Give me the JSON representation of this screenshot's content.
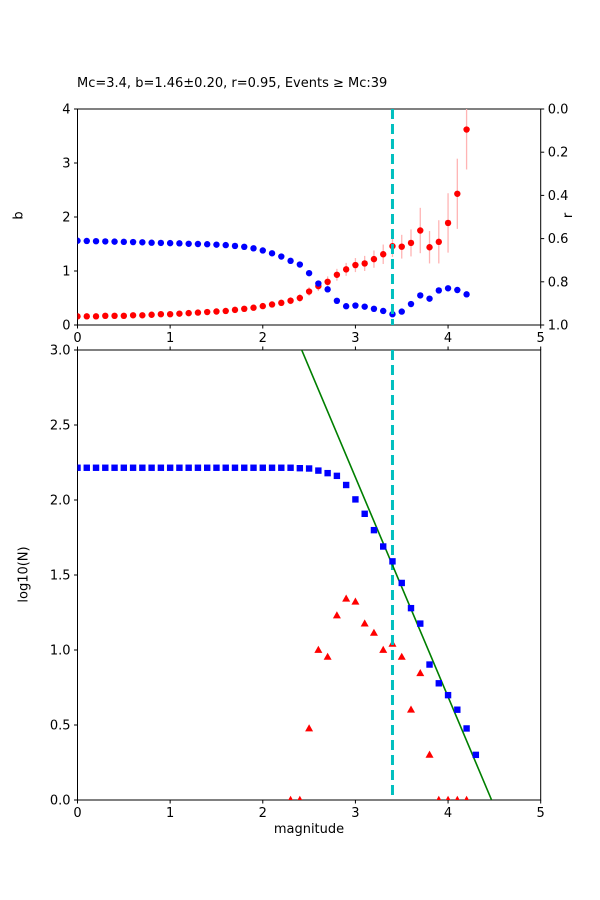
{
  "figure": {
    "title": "Mc=3.4, b=1.46±0.20, r=0.95, Events ≥ Mc:39",
    "stats": {
      "mc": 3.4,
      "b": "1.46",
      "b_err": "0.20",
      "r": "0.95",
      "events_ge_mc": 39
    },
    "colors": {
      "b_series": "#ff0000",
      "r_series": "#0000ff",
      "errorbar": "#ffb4b4",
      "fit_line": "#007f00",
      "mc_line": "#00bfbf"
    }
  },
  "chart_data": [
    {
      "id": "b-value-panel",
      "type": "scatter",
      "title": "Mc=3.4, b=1.46±0.20, r=0.95, Events ≥ Mc:39",
      "xlabel": "",
      "ylabel_left": "b",
      "ylabel_right": "r",
      "xlim": [
        0,
        5
      ],
      "ylim_left": [
        0,
        4
      ],
      "ylim_right": [
        0.0,
        1.0
      ],
      "grid": false,
      "xticks": {
        "values": [
          0,
          1,
          2,
          3,
          4,
          5
        ],
        "labels": [
          "0",
          "1",
          "2",
          "3",
          "4",
          "5"
        ]
      },
      "yticks_left": {
        "values": [
          0,
          1,
          2,
          3,
          4
        ],
        "labels": [
          "0",
          "1",
          "2",
          "3",
          "4"
        ]
      },
      "yticks_right": {
        "values": [
          0.0,
          0.2,
          0.4,
          0.6,
          0.8,
          1.0
        ],
        "labels": [
          "0.0",
          "0.2",
          "0.4",
          "0.6",
          "0.8",
          "1.0"
        ]
      },
      "mc_vline": {
        "x": 3.4,
        "color": "#00bfbf",
        "style": "dashed",
        "z": 5
      },
      "series": [
        {
          "name": "b-value",
          "marker": "circle",
          "color": "#ff0000",
          "errorbar_color": "#ffb4b4",
          "axis": "left",
          "z": 0,
          "x": [
            0.0,
            0.1,
            0.2,
            0.3,
            0.4,
            0.5,
            0.6,
            0.7,
            0.8,
            0.9,
            1.0,
            1.1,
            1.2,
            1.3,
            1.4,
            1.5,
            1.6,
            1.7,
            1.8,
            1.9,
            2.0,
            2.1,
            2.2,
            2.3,
            2.4,
            2.5,
            2.6,
            2.7,
            2.8,
            2.9,
            3.0,
            3.1,
            3.2,
            3.3,
            3.4,
            3.5,
            3.6,
            3.7,
            3.8,
            3.9,
            4.0,
            4.1,
            4.2
          ],
          "y": [
            0.16,
            0.16,
            0.16,
            0.17,
            0.17,
            0.17,
            0.18,
            0.18,
            0.19,
            0.2,
            0.2,
            0.21,
            0.22,
            0.23,
            0.24,
            0.25,
            0.26,
            0.28,
            0.3,
            0.32,
            0.35,
            0.38,
            0.41,
            0.45,
            0.5,
            0.62,
            0.72,
            0.8,
            0.93,
            1.03,
            1.11,
            1.14,
            1.22,
            1.31,
            1.46,
            1.45,
            1.52,
            1.75,
            1.44,
            1.54,
            1.89,
            2.43,
            3.62
          ],
          "yerr": [
            0.02,
            0.02,
            0.02,
            0.02,
            0.02,
            0.02,
            0.025,
            0.025,
            0.025,
            0.03,
            0.03,
            0.03,
            0.03,
            0.035,
            0.035,
            0.04,
            0.04,
            0.045,
            0.045,
            0.05,
            0.05,
            0.055,
            0.06,
            0.065,
            0.07,
            0.08,
            0.09,
            0.1,
            0.11,
            0.12,
            0.13,
            0.14,
            0.16,
            0.18,
            0.2,
            0.22,
            0.25,
            0.42,
            0.3,
            0.4,
            0.55,
            0.65,
            0.74
          ]
        },
        {
          "name": "correlation-r",
          "marker": "circle",
          "color": "#0000ff",
          "axis": "right",
          "z": 0,
          "x": [
            0.0,
            0.1,
            0.2,
            0.3,
            0.4,
            0.5,
            0.6,
            0.7,
            0.8,
            0.9,
            1.0,
            1.1,
            1.2,
            1.3,
            1.4,
            1.5,
            1.6,
            1.7,
            1.8,
            1.9,
            2.0,
            2.1,
            2.2,
            2.3,
            2.4,
            2.5,
            2.6,
            2.7,
            2.8,
            2.9,
            3.0,
            3.1,
            3.2,
            3.3,
            3.4,
            3.5,
            3.6,
            3.7,
            3.8,
            3.9,
            4.0,
            4.1,
            4.2
          ],
          "y": [
            0.61,
            0.611,
            0.612,
            0.613,
            0.614,
            0.615,
            0.616,
            0.617,
            0.619,
            0.62,
            0.621,
            0.622,
            0.624,
            0.625,
            0.626,
            0.628,
            0.63,
            0.634,
            0.638,
            0.645,
            0.655,
            0.668,
            0.683,
            0.703,
            0.72,
            0.76,
            0.808,
            0.835,
            0.888,
            0.913,
            0.91,
            0.915,
            0.925,
            0.935,
            0.95,
            0.938,
            0.903,
            0.863,
            0.878,
            0.84,
            0.83,
            0.838,
            0.858
          ]
        }
      ]
    },
    {
      "id": "fmd-panel",
      "type": "scatter",
      "xlabel": "magnitude",
      "ylabel_left": "log10(N)",
      "xlim": [
        0,
        5
      ],
      "ylim_left": [
        0.0,
        3.0
      ],
      "grid": false,
      "top_spine_ticks": true,
      "xticks": {
        "values": [
          0,
          1,
          2,
          3,
          4,
          5
        ],
        "labels": [
          "0",
          "1",
          "2",
          "3",
          "4",
          "5"
        ]
      },
      "yticks_left": {
        "values": [
          0.0,
          0.5,
          1.0,
          1.5,
          2.0,
          2.5,
          3.0
        ],
        "labels": [
          "0.0",
          "0.5",
          "1.0",
          "1.5",
          "2.0",
          "2.5",
          "3.0"
        ]
      },
      "mc_vline": {
        "x": 3.4,
        "color": "#00bfbf",
        "style": "dashed",
        "z": 1
      },
      "series": [
        {
          "name": "incremental-count",
          "marker": "triangle",
          "color": "#ff0000",
          "axis": "left",
          "z": 0,
          "x": [
            2.3,
            2.4,
            2.5,
            2.6,
            2.7,
            2.8,
            2.9,
            3.0,
            3.1,
            3.2,
            3.3,
            3.4,
            3.5,
            3.6,
            3.7,
            3.8,
            3.9,
            4.0,
            4.1,
            4.2
          ],
          "y": [
            0.0,
            0.0,
            0.477,
            1.0,
            0.954,
            1.23,
            1.342,
            1.322,
            1.176,
            1.114,
            1.0,
            1.041,
            0.954,
            0.602,
            0.845,
            0.301,
            0.0,
            0.0,
            0.0,
            0.0
          ]
        },
        {
          "name": "gr-fit-line",
          "marker": "none",
          "line": true,
          "color": "#007f00",
          "axis": "left",
          "z": 2,
          "x": [
            2.42,
            4.47
          ],
          "y": [
            3.0,
            0.0
          ]
        },
        {
          "name": "cumulative-count",
          "marker": "square",
          "color": "#0000ff",
          "axis": "left",
          "z": 3,
          "x": [
            0.0,
            0.1,
            0.2,
            0.3,
            0.4,
            0.5,
            0.6,
            0.7,
            0.8,
            0.9,
            1.0,
            1.1,
            1.2,
            1.3,
            1.4,
            1.5,
            1.6,
            1.7,
            1.8,
            1.9,
            2.0,
            2.1,
            2.2,
            2.3,
            2.4,
            2.5,
            2.6,
            2.7,
            2.8,
            2.9,
            3.0,
            3.1,
            3.2,
            3.3,
            3.4,
            3.5,
            3.6,
            3.7,
            3.8,
            3.9,
            4.0,
            4.1,
            4.2,
            4.3
          ],
          "y": [
            2.215,
            2.215,
            2.215,
            2.215,
            2.215,
            2.215,
            2.215,
            2.215,
            2.215,
            2.215,
            2.215,
            2.215,
            2.215,
            2.215,
            2.215,
            2.215,
            2.215,
            2.215,
            2.215,
            2.215,
            2.215,
            2.215,
            2.215,
            2.215,
            2.212,
            2.21,
            2.196,
            2.179,
            2.161,
            2.1,
            2.004,
            1.908,
            1.799,
            1.69,
            1.591,
            1.447,
            1.279,
            1.176,
            0.903,
            0.778,
            0.699,
            0.602,
            0.477,
            0.301
          ]
        }
      ]
    }
  ]
}
